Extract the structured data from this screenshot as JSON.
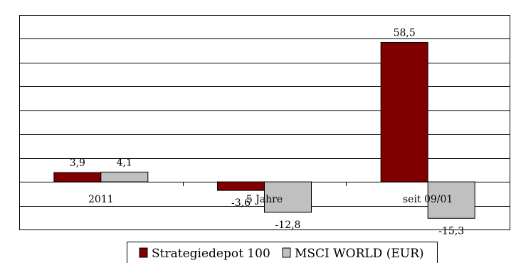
{
  "chart_data": {
    "type": "bar",
    "categories": [
      "2011",
      "5 Jahre",
      "seit 09/01"
    ],
    "series": [
      {
        "name": "Strategiedepot 100",
        "color": "#800000",
        "values": [
          3.9,
          -3.6,
          58.5
        ],
        "labels": [
          "3,9",
          "-3,6",
          "58,5"
        ]
      },
      {
        "name": "MSCI WORLD (EUR)",
        "color": "#c0c0c0",
        "values": [
          4.1,
          -12.8,
          -15.3
        ],
        "labels": [
          "4,1",
          "-12,8",
          "-15,3"
        ]
      }
    ],
    "ylim": [
      -20,
      70
    ],
    "grid": true,
    "legend_position": "bottom"
  }
}
